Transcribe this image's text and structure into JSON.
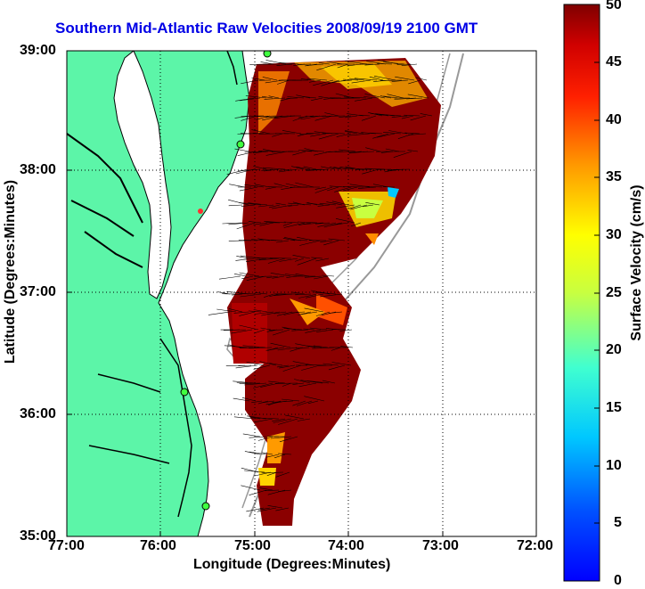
{
  "title": "Southern Mid-Atlantic Raw Velocities 2008/09/19 2100 GMT",
  "map": {
    "xlabel": "Longitude (Degrees:Minutes)",
    "ylabel": "Latitude (Degrees:Minutes)",
    "x_ticks": [
      "77:00",
      "76:00",
      "75:00",
      "74:00",
      "73:00",
      "72:00"
    ],
    "y_ticks": [
      "39:00",
      "38:00",
      "37:00",
      "36:00",
      "35:00"
    ],
    "lon_range": [
      -77,
      -72
    ],
    "lat_range": [
      35,
      39
    ],
    "grid": "dotted",
    "land_color": "#5cf5a8",
    "water_color": "#ffffff"
  },
  "colorbar": {
    "label": "Surface Velocity (cm/s)",
    "ticks": [
      "50",
      "45",
      "40",
      "35",
      "30",
      "25",
      "20",
      "15",
      "10",
      "5",
      "0"
    ],
    "range": [
      0,
      50
    ],
    "colormap": "jet"
  }
}
